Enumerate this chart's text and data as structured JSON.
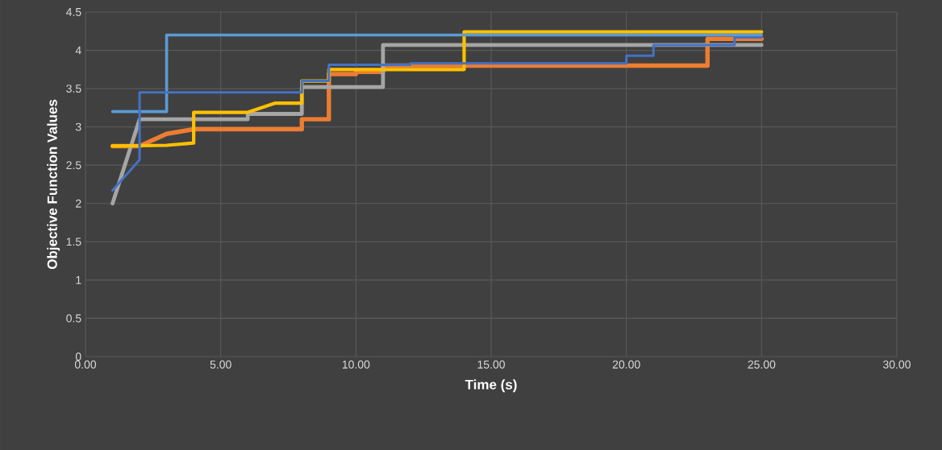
{
  "chart_data": {
    "type": "line",
    "xlabel": "Time (s)",
    "ylabel": "Objective Function Values",
    "xlim": [
      0,
      30
    ],
    "ylim": [
      0,
      4.5
    ],
    "xticks": [
      {
        "value": 0,
        "label": "0.00"
      },
      {
        "value": 5,
        "label": "5.00"
      },
      {
        "value": 10,
        "label": "10.00"
      },
      {
        "value": 15,
        "label": "15.00"
      },
      {
        "value": 20,
        "label": "20.00"
      },
      {
        "value": 25,
        "label": "25.00"
      },
      {
        "value": 30,
        "label": "30.00"
      }
    ],
    "yticks": [
      0,
      0.5,
      1,
      1.5,
      2,
      2.5,
      3,
      3.5,
      4,
      4.5
    ],
    "grid": true,
    "marker": "none",
    "line_style": "solid",
    "series": [
      {
        "color": "#ed7d31",
        "x": [
          1,
          2,
          3,
          4,
          8,
          8,
          9,
          9,
          10,
          10,
          11,
          11,
          23,
          23,
          25
        ],
        "values": [
          2.75,
          2.75,
          2.91,
          2.97,
          2.97,
          3.1,
          3.1,
          3.69,
          3.69,
          3.72,
          3.72,
          3.8,
          3.8,
          4.15,
          4.15
        ]
      },
      {
        "color": "#a5a5a5",
        "x": [
          1,
          2,
          6,
          6,
          8,
          8,
          11,
          11,
          25
        ],
        "values": [
          2.0,
          3.1,
          3.1,
          3.17,
          3.17,
          3.52,
          3.52,
          4.07,
          4.07
        ]
      },
      {
        "color": "#ffc000",
        "x": [
          1,
          3,
          4,
          4,
          6,
          7,
          8,
          8,
          9,
          9,
          14,
          14,
          25
        ],
        "values": [
          2.75,
          2.76,
          2.79,
          3.19,
          3.19,
          3.31,
          3.31,
          3.6,
          3.6,
          3.75,
          3.75,
          4.24,
          4.24
        ]
      },
      {
        "color": "#5b9bd5",
        "x": [
          1,
          3,
          3,
          25
        ],
        "values": [
          3.2,
          3.2,
          4.2,
          4.2
        ]
      },
      {
        "color": "#4472c4",
        "x": [
          1,
          2,
          2,
          8,
          8,
          9,
          9,
          12,
          12,
          20,
          20,
          21,
          21,
          24,
          24,
          25
        ],
        "values": [
          2.17,
          2.57,
          3.45,
          3.45,
          3.6,
          3.6,
          3.81,
          3.81,
          3.83,
          3.83,
          3.93,
          3.93,
          4.07,
          4.07,
          4.17,
          4.17
        ]
      }
    ]
  }
}
